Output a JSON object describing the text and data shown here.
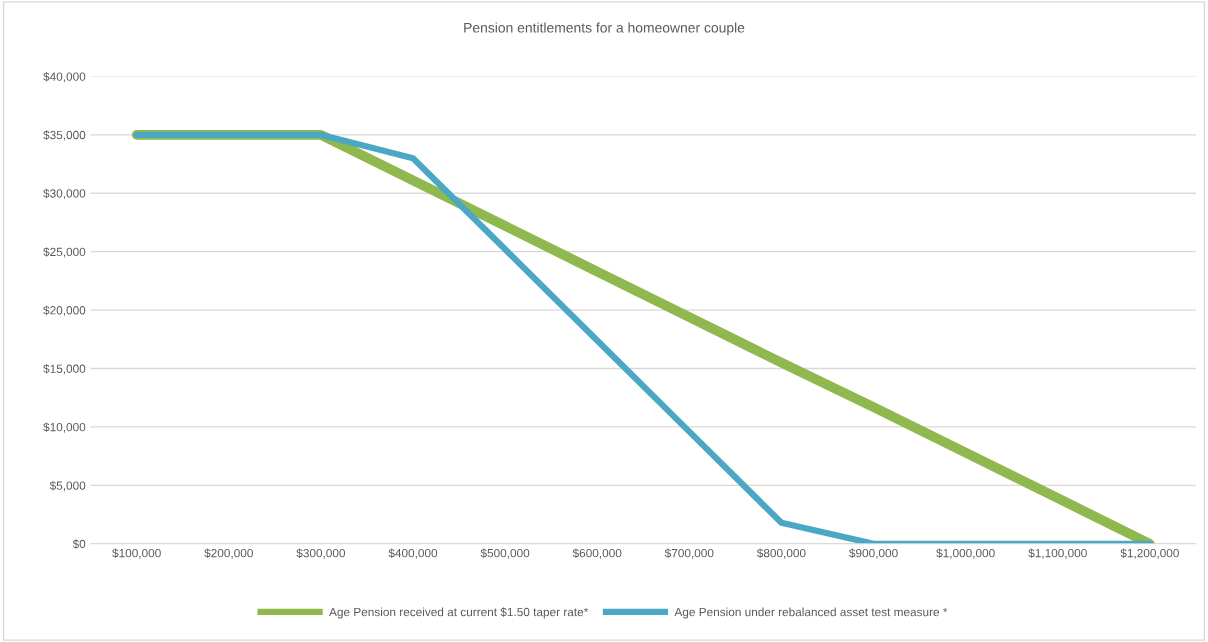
{
  "chart_data": {
    "type": "line",
    "title": "Pension entitlements for a homeowner couple",
    "categories": [
      "$100,000",
      "$200,000",
      "$300,000",
      "$400,000",
      "$500,000",
      "$600,000",
      "$700,000",
      "$800,000",
      "$900,000",
      "$1,000,000",
      "$1,100,000",
      "$1,200,000"
    ],
    "series": [
      {
        "name": "Age Pension received at current $1.50 taper rate*",
        "color": "#8fb84f",
        "values": [
          35000,
          35000,
          35000,
          31100,
          27200,
          23300,
          19400,
          15500,
          11700,
          7800,
          3900,
          0
        ]
      },
      {
        "name": "Age Pension under rebalanced asset test measure *",
        "color": "#4aa8c4",
        "values": [
          35000,
          35000,
          35000,
          33000,
          25200,
          17400,
          9600,
          1800,
          0,
          0,
          0,
          0
        ]
      }
    ],
    "ylim": [
      0,
      40000
    ],
    "yticks": [
      {
        "value": 0,
        "label": "$0"
      },
      {
        "value": 5000,
        "label": "$5,000"
      },
      {
        "value": 10000,
        "label": "$10,000"
      },
      {
        "value": 15000,
        "label": "$15,000"
      },
      {
        "value": 20000,
        "label": "$20,000"
      },
      {
        "value": 25000,
        "label": "$25,000"
      },
      {
        "value": 30000,
        "label": "$30,000"
      },
      {
        "value": 35000,
        "label": "$35,000"
      },
      {
        "value": 40000,
        "label": "$40,000"
      }
    ],
    "grid": "y",
    "legend": "bottom",
    "marker": "none",
    "line_style": "solid"
  }
}
